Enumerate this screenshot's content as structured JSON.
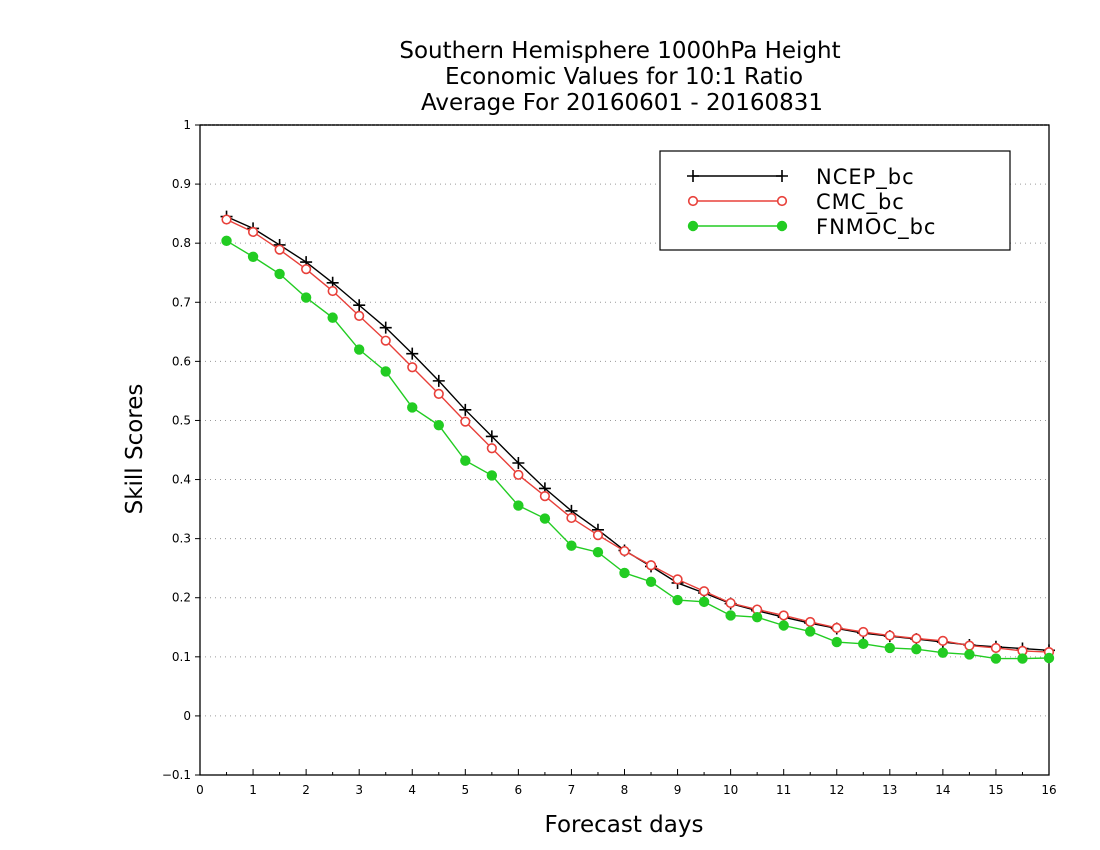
{
  "chart_data": {
    "type": "line",
    "title": [
      "Southern Hemisphere 1000hPa Height",
      "Economic Values for 10:1 Ratio",
      "Average For 20160601 - 20160831"
    ],
    "xlabel": "Forecast days",
    "ylabel": "Skill Scores",
    "xlim": [
      0,
      16
    ],
    "ylim": [
      -0.1,
      1
    ],
    "xticks": [
      0,
      1,
      2,
      3,
      4,
      5,
      6,
      7,
      8,
      9,
      10,
      11,
      12,
      13,
      14,
      15,
      16
    ],
    "xtick_labels": [
      "0",
      "1",
      "2",
      "3",
      "4",
      "5",
      "6",
      "7",
      "8",
      "9",
      "10",
      "11",
      "12",
      "13",
      "14",
      "15",
      "16"
    ],
    "yticks": [
      -0.1,
      0,
      0.1,
      0.2,
      0.3,
      0.4,
      0.5,
      0.6,
      0.7,
      0.8,
      0.9,
      1
    ],
    "ytick_labels": [
      "−0.1",
      "0",
      "0.1",
      "0.2",
      "0.3",
      "0.4",
      "0.5",
      "0.6",
      "0.7",
      "0.8",
      "0.9",
      "1"
    ],
    "grid": "horizontal-dotted",
    "legend_position": "top-right",
    "x": [
      0.5,
      1,
      1.5,
      2,
      2.5,
      3,
      3.5,
      4,
      4.5,
      5,
      5.5,
      6,
      6.5,
      7,
      7.5,
      8,
      8.5,
      9,
      9.5,
      10,
      10.5,
      11,
      11.5,
      12,
      12.5,
      13,
      13.5,
      14,
      14.5,
      15,
      15.5,
      16
    ],
    "series": [
      {
        "name": "NCEP_bc",
        "color": "#000000",
        "marker": "plus",
        "values": [
          0.845,
          0.825,
          0.797,
          0.768,
          0.733,
          0.695,
          0.657,
          0.613,
          0.567,
          0.518,
          0.473,
          0.428,
          0.385,
          0.347,
          0.315,
          0.28,
          0.253,
          0.225,
          0.208,
          0.19,
          0.178,
          0.167,
          0.157,
          0.148,
          0.14,
          0.135,
          0.13,
          0.125,
          0.12,
          0.117,
          0.114,
          0.111
        ]
      },
      {
        "name": "CMC_bc",
        "color": "#e8403a",
        "marker": "open-circle",
        "values": [
          0.84,
          0.819,
          0.789,
          0.756,
          0.719,
          0.677,
          0.635,
          0.59,
          0.545,
          0.498,
          0.453,
          0.408,
          0.372,
          0.335,
          0.306,
          0.279,
          0.255,
          0.231,
          0.211,
          0.191,
          0.18,
          0.17,
          0.159,
          0.149,
          0.142,
          0.136,
          0.131,
          0.127,
          0.119,
          0.115,
          0.11,
          0.108
        ]
      },
      {
        "name": "FNMOC_bc",
        "color": "#22cc22",
        "marker": "filled-circle",
        "values": [
          0.804,
          0.777,
          0.748,
          0.708,
          0.674,
          0.62,
          0.583,
          0.522,
          0.492,
          0.432,
          0.407,
          0.356,
          0.334,
          0.288,
          0.277,
          0.242,
          0.227,
          0.196,
          0.193,
          0.17,
          0.167,
          0.153,
          0.143,
          0.125,
          0.122,
          0.115,
          0.113,
          0.107,
          0.104,
          0.097,
          0.097,
          0.098
        ]
      }
    ]
  }
}
